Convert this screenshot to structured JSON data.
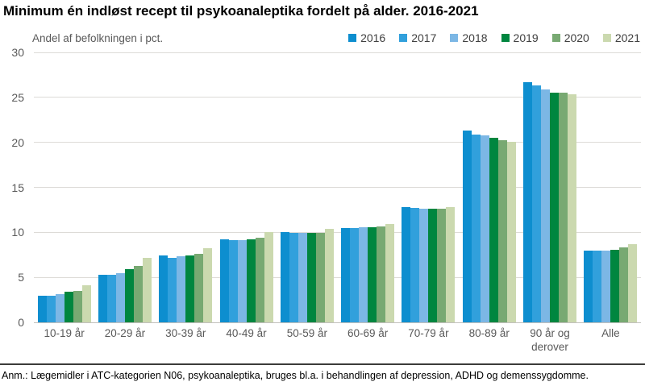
{
  "title": "Minimum én indløst recept til psykoanaleptika fordelt på alder. 2016-2021",
  "footnote": "Anm.: Lægemidler i ATC-kategorien N06, psykoanaleptika, bruges bl.a. i behandlingen af depression, ADHD og demenssygdomme.",
  "chart_data": {
    "type": "bar",
    "title": "Minimum én indløst recept til psykoanaleptika fordelt på alder. 2016-2021",
    "ylabel": "Andel af befolkningen i pct.",
    "xlabel": "",
    "ylim": [
      0,
      30
    ],
    "yticks": [
      0,
      5,
      10,
      15,
      20,
      25,
      30
    ],
    "grid": "horizontal",
    "legend_position": "top-right",
    "categories": [
      "10-19 år",
      "20-29 år",
      "30-39 år",
      "40-49 år",
      "50-59 år",
      "60-69 år",
      "70-79 år",
      "80-89 år",
      "90 år og derover",
      "Alle"
    ],
    "series": [
      {
        "name": "2016",
        "color": "#0d8ecf",
        "values": [
          3.0,
          5.3,
          7.4,
          9.2,
          10.0,
          10.5,
          12.8,
          21.3,
          26.7,
          8.0
        ]
      },
      {
        "name": "2017",
        "color": "#31a0dc",
        "values": [
          3.0,
          5.3,
          7.2,
          9.1,
          9.9,
          10.5,
          12.7,
          20.9,
          26.3,
          8.0
        ]
      },
      {
        "name": "2018",
        "color": "#7cb7e5",
        "values": [
          3.1,
          5.5,
          7.3,
          9.1,
          9.9,
          10.6,
          12.6,
          20.8,
          25.9,
          8.0
        ]
      },
      {
        "name": "2019",
        "color": "#00863f",
        "values": [
          3.4,
          5.9,
          7.4,
          9.2,
          9.9,
          10.6,
          12.6,
          20.5,
          25.5,
          8.1
        ]
      },
      {
        "name": "2020",
        "color": "#78a972",
        "values": [
          3.5,
          6.3,
          7.6,
          9.4,
          9.9,
          10.7,
          12.6,
          20.2,
          25.5,
          8.3
        ]
      },
      {
        "name": "2021",
        "color": "#cbd9af",
        "values": [
          4.1,
          7.2,
          8.2,
          10.0,
          10.4,
          10.9,
          12.8,
          20.1,
          25.3,
          8.7
        ]
      }
    ]
  }
}
